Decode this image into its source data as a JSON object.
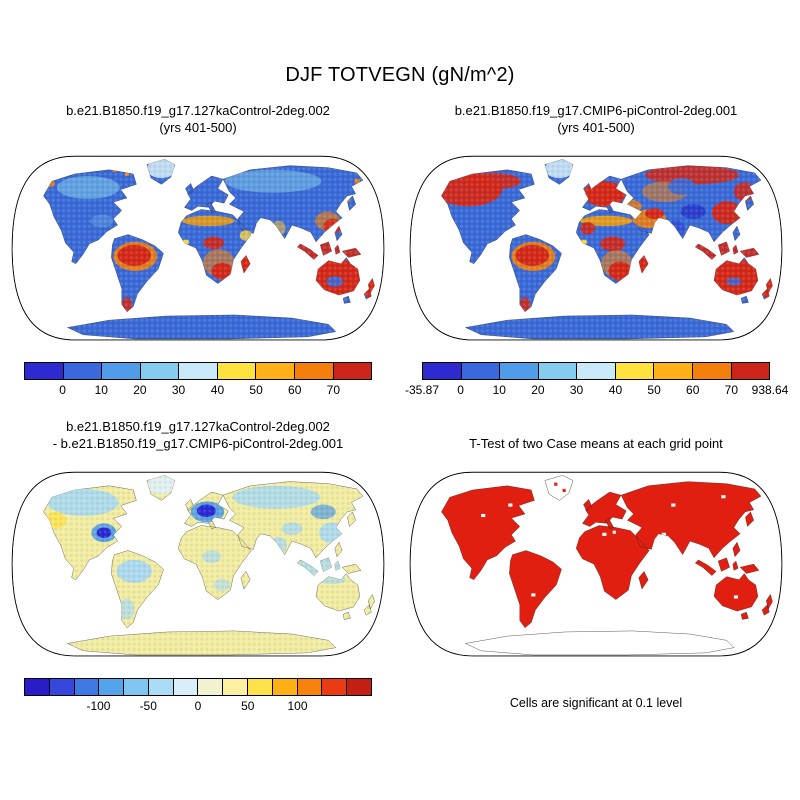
{
  "figure": {
    "title": "DJF TOTVEGN (gN/m^2)"
  },
  "panels": {
    "top_left": {
      "title_line1": "b.e21.B1850.f19_g17.127kaControl-2deg.002",
      "title_line2": "(yrs 401-500)"
    },
    "top_right": {
      "title_line1": "b.e21.B1850.f19_g17.CMIP6-piControl-2deg.001",
      "title_line2": "(yrs 401-500)"
    },
    "bottom_left": {
      "title_line1": "b.e21.B1850.f19_g17.127kaControl-2deg.002",
      "title_line2": "- b.e21.B1850.f19_g17.CMIP6-piControl-2deg.001"
    },
    "bottom_right": {
      "title": "T-Test of two Case means at each grid point",
      "caption": "Cells are significant at 0.1 level"
    }
  },
  "chart_data": [
    {
      "type": "heatmap",
      "panel": "top_left",
      "season": "DJF",
      "variable": "TOTVEGN",
      "units": "gN/m^2",
      "case": "b.e21.B1850.f19_g17.127kaControl-2deg.002",
      "years": "yrs 401-500",
      "levels": [
        0,
        10,
        20,
        30,
        40,
        50,
        60,
        70
      ],
      "palette": [
        "#2e2ad0",
        "#3c68de",
        "#4f9ce8",
        "#84ccf0",
        "#c7e9f8",
        "#ffe23e",
        "#ffb117",
        "#f57f0c",
        "#cc2418"
      ],
      "tick_labels": [
        "0",
        "10",
        "20",
        "30",
        "40",
        "50",
        "60",
        "70"
      ],
      "tick_positions": [
        0.111,
        0.222,
        0.333,
        0.444,
        0.556,
        0.667,
        0.778,
        0.889
      ]
    },
    {
      "type": "heatmap",
      "panel": "top_right",
      "season": "DJF",
      "variable": "TOTVEGN",
      "units": "gN/m^2",
      "case": "b.e21.B1850.f19_g17.CMIP6-piControl-2deg.001",
      "years": "yrs 401-500",
      "min": -35.87,
      "max": 938.64,
      "levels": [
        0,
        10,
        20,
        30,
        40,
        50,
        60,
        70
      ],
      "palette": [
        "#2e2ad0",
        "#3c68de",
        "#4f9ce8",
        "#84ccf0",
        "#c7e9f8",
        "#ffe23e",
        "#ffb117",
        "#f57f0c",
        "#cc2418"
      ],
      "tick_labels": [
        "-35.87",
        "0",
        "10",
        "20",
        "30",
        "40",
        "50",
        "60",
        "70",
        "938.64"
      ],
      "tick_positions": [
        0,
        0.111,
        0.222,
        0.333,
        0.444,
        0.556,
        0.667,
        0.778,
        0.889,
        1
      ]
    },
    {
      "type": "heatmap",
      "panel": "bottom_left",
      "case": "b.e21.B1850.f19_g17.127kaControl-2deg.002 - b.e21.B1850.f19_g17.CMIP6-piControl-2deg.001",
      "palette": [
        "#2a1cc8",
        "#3648dc",
        "#3f7ae4",
        "#54a4ec",
        "#7fc6f2",
        "#aadcf6",
        "#d8eefa",
        "#f2f2d0",
        "#fdf0a2",
        "#ffe14a",
        "#ffb014",
        "#f8820e",
        "#e93c14",
        "#c41f14"
      ],
      "tick_labels": [
        "-100",
        "-50",
        "0",
        "50",
        "100"
      ],
      "tick_positions": [
        0.214,
        0.357,
        0.5,
        0.643,
        0.786
      ]
    },
    {
      "type": "heatmap",
      "panel": "bottom_right",
      "title": "T-Test of two Case means at each grid point",
      "significant_color": "#e01f10",
      "note": "Cells are significant at 0.1 level"
    }
  ]
}
